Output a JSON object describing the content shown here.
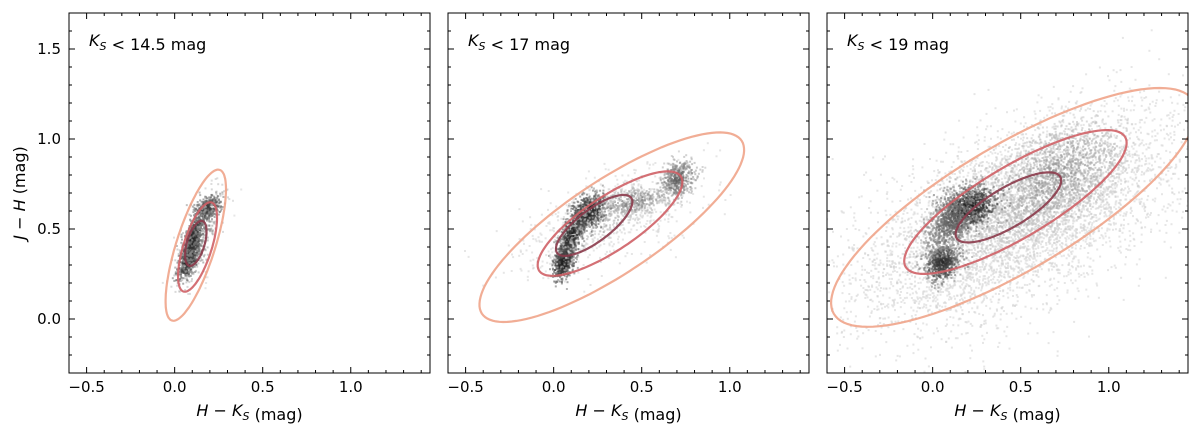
{
  "chart_data": [
    {
      "type": "scatter",
      "title": "",
      "annotation": "K_S < 14.5 mag",
      "xlabel": "H − K_S (mag)",
      "ylabel": "J − H (mag)",
      "xlim": [
        -0.6,
        1.45
      ],
      "ylim": [
        -0.3,
        1.7
      ],
      "xticks": [
        -0.5,
        0.0,
        0.5,
        1.0
      ],
      "yticks": [
        0.0,
        0.5,
        1.0,
        1.5
      ],
      "grid": false,
      "clusters": [
        {
          "cx": 0.07,
          "cy": 0.33,
          "sx": 0.03,
          "sy": 0.05,
          "rho": 0.5,
          "n": 380,
          "tone": 0.08
        },
        {
          "cx": 0.1,
          "cy": 0.45,
          "sx": 0.03,
          "sy": 0.08,
          "rho": 0.6,
          "n": 500,
          "tone": 0.12
        },
        {
          "cx": 0.18,
          "cy": 0.62,
          "sx": 0.04,
          "sy": 0.04,
          "rho": 0.3,
          "n": 300,
          "tone": 0.18
        },
        {
          "cx": 0.13,
          "cy": 0.45,
          "sx": 0.07,
          "sy": 0.13,
          "rho": 0.7,
          "n": 350,
          "tone": 0.45
        }
      ],
      "contours": [
        {
          "cx": 0.12,
          "cy": 0.42,
          "a": 0.13,
          "b": 0.05,
          "angle_deg": 73,
          "color": "#8b3a4a"
        },
        {
          "cx": 0.13,
          "cy": 0.4,
          "a": 0.26,
          "b": 0.08,
          "angle_deg": 72,
          "color": "#cf6066"
        },
        {
          "cx": 0.12,
          "cy": 0.41,
          "a": 0.44,
          "b": 0.11,
          "angle_deg": 72,
          "color": "#f0a48a"
        }
      ]
    },
    {
      "type": "scatter",
      "title": "",
      "annotation": "K_S < 17 mag",
      "xlabel": "H − K_S (mag)",
      "ylabel": "",
      "xlim": [
        -0.6,
        1.45
      ],
      "ylim": [
        -0.3,
        1.7
      ],
      "xticks": [
        -0.5,
        0.0,
        0.5,
        1.0
      ],
      "yticks": [
        0.0,
        0.5,
        1.0,
        1.5
      ],
      "grid": false,
      "clusters": [
        {
          "cx": 0.05,
          "cy": 0.32,
          "sx": 0.03,
          "sy": 0.05,
          "rho": 0.3,
          "n": 500,
          "tone": 0.08
        },
        {
          "cx": 0.1,
          "cy": 0.48,
          "sx": 0.04,
          "sy": 0.07,
          "rho": 0.6,
          "n": 500,
          "tone": 0.1
        },
        {
          "cx": 0.2,
          "cy": 0.6,
          "sx": 0.05,
          "sy": 0.05,
          "rho": 0.3,
          "n": 550,
          "tone": 0.1
        },
        {
          "cx": 0.45,
          "cy": 0.66,
          "sx": 0.1,
          "sy": 0.04,
          "rho": 0.3,
          "n": 400,
          "tone": 0.45
        },
        {
          "cx": 0.7,
          "cy": 0.78,
          "sx": 0.05,
          "sy": 0.05,
          "rho": 0.3,
          "n": 450,
          "tone": 0.35
        },
        {
          "cx": 0.3,
          "cy": 0.55,
          "sx": 0.25,
          "sy": 0.15,
          "rho": 0.6,
          "n": 700,
          "tone": 0.7
        }
      ],
      "contours": [
        {
          "cx": 0.23,
          "cy": 0.52,
          "a": 0.26,
          "b": 0.09,
          "angle_deg": 36,
          "color": "#8b3a4a"
        },
        {
          "cx": 0.32,
          "cy": 0.53,
          "a": 0.48,
          "b": 0.15,
          "angle_deg": 33,
          "color": "#cf6066"
        },
        {
          "cx": 0.33,
          "cy": 0.51,
          "a": 0.88,
          "b": 0.26,
          "angle_deg": 33,
          "color": "#f0a48a"
        }
      ]
    },
    {
      "type": "scatter",
      "title": "",
      "annotation": "K_S < 19 mag",
      "xlabel": "H − K_S (mag)",
      "ylabel": "",
      "xlim": [
        -0.6,
        1.45
      ],
      "ylim": [
        -0.3,
        1.7
      ],
      "xticks": [
        -0.5,
        0.0,
        0.5,
        1.0
      ],
      "yticks": [
        0.0,
        0.5,
        1.0,
        1.5
      ],
      "grid": false,
      "clusters": [
        {
          "cx": 0.45,
          "cy": 0.55,
          "sx": 0.45,
          "sy": 0.28,
          "rho": 0.55,
          "n": 5000,
          "tone": 0.72
        },
        {
          "cx": 0.7,
          "cy": 0.8,
          "sx": 0.22,
          "sy": 0.18,
          "rho": 0.4,
          "n": 1800,
          "tone": 0.55
        },
        {
          "cx": 0.2,
          "cy": 0.62,
          "sx": 0.08,
          "sy": 0.06,
          "rho": 0.3,
          "n": 900,
          "tone": 0.08
        },
        {
          "cx": 0.05,
          "cy": 0.32,
          "sx": 0.05,
          "sy": 0.05,
          "rho": 0.2,
          "n": 600,
          "tone": 0.15
        },
        {
          "cx": 0.1,
          "cy": 0.55,
          "sx": 0.08,
          "sy": 0.1,
          "rho": 0.5,
          "n": 800,
          "tone": 0.35
        }
      ],
      "contours": [
        {
          "cx": 0.43,
          "cy": 0.62,
          "a": 0.34,
          "b": 0.11,
          "angle_deg": 30,
          "color": "#8b3a4a"
        },
        {
          "cx": 0.47,
          "cy": 0.65,
          "a": 0.72,
          "b": 0.2,
          "angle_deg": 30,
          "color": "#cf6066"
        },
        {
          "cx": 0.46,
          "cy": 0.62,
          "a": 1.18,
          "b": 0.35,
          "angle_deg": 30,
          "color": "#f0a48a"
        }
      ]
    }
  ]
}
